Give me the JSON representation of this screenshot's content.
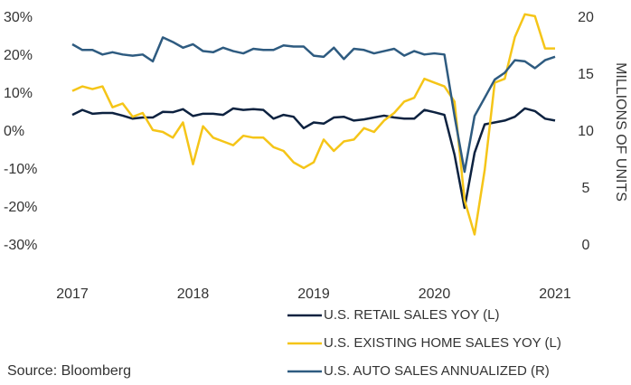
{
  "chart_data": {
    "type": "line",
    "y2_label": "MILLIONS OF UNITS",
    "source": "Source: Bloomberg",
    "xlim": [
      2017,
      2021
    ],
    "xticks": [
      2017,
      2018,
      2019,
      2020,
      2021
    ],
    "ylim": [
      -30,
      30
    ],
    "yticks": [
      {
        "value": -30,
        "label": "-30%"
      },
      {
        "value": -20,
        "label": "-20%"
      },
      {
        "value": -10,
        "label": "-10%"
      },
      {
        "value": 0,
        "label": "0%"
      },
      {
        "value": 10,
        "label": "10%"
      },
      {
        "value": 20,
        "label": "20%"
      },
      {
        "value": 30,
        "label": "30%"
      }
    ],
    "y2lim": [
      0,
      20
    ],
    "y2ticks": [
      0,
      5,
      10,
      15,
      20
    ],
    "x": [
      2017,
      2017.083,
      2017.167,
      2017.25,
      2017.333,
      2017.417,
      2017.5,
      2017.583,
      2017.667,
      2017.75,
      2017.833,
      2017.917,
      2018,
      2018.083,
      2018.167,
      2018.25,
      2018.333,
      2018.417,
      2018.5,
      2018.583,
      2018.667,
      2018.75,
      2018.833,
      2018.917,
      2019,
      2019.083,
      2019.167,
      2019.25,
      2019.333,
      2019.417,
      2019.5,
      2019.583,
      2019.667,
      2019.75,
      2019.833,
      2019.917,
      2020,
      2020.083,
      2020.167,
      2020.25,
      2020.333,
      2020.417,
      2020.5,
      2020.583,
      2020.667,
      2020.75,
      2020.833,
      2020.917,
      2021
    ],
    "series": [
      {
        "name": "U.S. RETAIL SALES YOY (L)",
        "color": "#0d2240",
        "axis": "y",
        "values": [
          4.5,
          5.8,
          4.8,
          5,
          5,
          4.3,
          3.5,
          3.8,
          3.8,
          5.3,
          5.2,
          6,
          4.2,
          4.8,
          4.8,
          4.5,
          6.2,
          5.8,
          6,
          5.8,
          3.5,
          4.5,
          4,
          1,
          2.5,
          2.2,
          3.8,
          4,
          3,
          3.3,
          3.8,
          4.3,
          3.8,
          3.5,
          3.5,
          5.8,
          5.2,
          4.5,
          -6,
          -20,
          -5.5,
          2,
          2.5,
          3,
          4,
          6.2,
          5.5,
          3.5,
          3
        ]
      },
      {
        "name": "U.S. EXISTING HOME SALES YOY (L)",
        "color": "#f5c518",
        "axis": "y",
        "values": [
          10.8,
          12,
          11.3,
          12,
          6.5,
          7.5,
          4,
          5,
          0.5,
          0,
          -1.5,
          2.5,
          -8.5,
          1.5,
          -1.5,
          -2.5,
          -3.5,
          -1,
          -1.5,
          -1.5,
          -4,
          -5,
          -8,
          -9.5,
          -8,
          -2,
          -5,
          -2.5,
          -2,
          1,
          0,
          3,
          5,
          8,
          9,
          14,
          13,
          12,
          8,
          -18,
          -27,
          -10,
          13,
          14,
          25,
          31,
          30.5,
          22,
          22
        ]
      },
      {
        "name": "U.S. AUTO SALES ANNUALIZED (R)",
        "color": "#2e5b80",
        "axis": "y2",
        "values": [
          17.7,
          17.2,
          17.2,
          16.8,
          17,
          16.8,
          16.7,
          16.8,
          16.2,
          18.3,
          17.9,
          17.4,
          17.7,
          17.1,
          17,
          17.4,
          17.1,
          16.9,
          17.3,
          17.2,
          17.2,
          17.6,
          17.5,
          17.5,
          16.7,
          16.6,
          17.4,
          16.4,
          17.3,
          17.2,
          16.9,
          17.1,
          17.3,
          16.7,
          17.1,
          16.8,
          16.9,
          16.8,
          11.4,
          6.5,
          11.4,
          13,
          14.6,
          15.2,
          16.3,
          16.2,
          15.6,
          16.3,
          16.6
        ]
      }
    ]
  }
}
